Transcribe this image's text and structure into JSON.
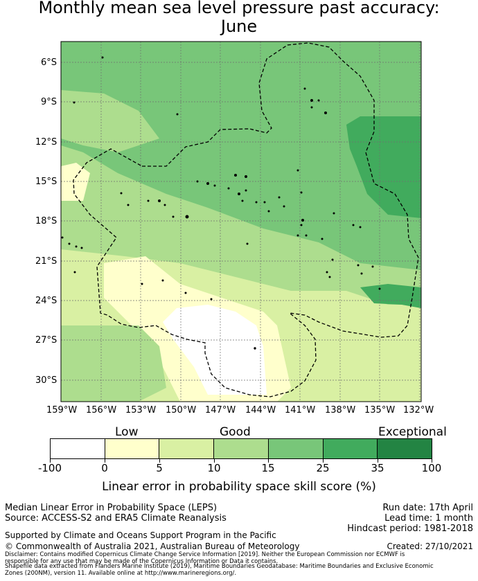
{
  "title_line1": "Monthly mean sea level pressure past accuracy:",
  "title_line2": "June",
  "map": {
    "lat_ticks": [
      "6°S",
      "9°S",
      "12°S",
      "15°S",
      "18°S",
      "21°S",
      "24°S",
      "27°S",
      "30°S"
    ],
    "lon_ticks": [
      "159°W",
      "156°W",
      "153°W",
      "150°W",
      "147°W",
      "144°W",
      "141°W",
      "138°W",
      "135°W",
      "132°W"
    ],
    "colors": {
      "low": "#ffffff",
      "c0_5": "#ffffcc",
      "c5_10": "#d9f0a3",
      "c10_15": "#addd8e",
      "c15_25": "#78c679",
      "c25_35": "#41ab5d",
      "c35_100": "#238443"
    }
  },
  "colorbar": {
    "category_labels": [
      "Low",
      "Good",
      "Exceptional"
    ],
    "tick_labels": [
      "-100",
      "0",
      "5",
      "10",
      "15",
      "25",
      "35",
      "100"
    ],
    "colors": [
      "#ffffff",
      "#ffffcc",
      "#d9f0a3",
      "#addd8e",
      "#78c679",
      "#41ab5d",
      "#238443"
    ],
    "axis_label": "Linear error in probability space skill score (%)"
  },
  "footer": {
    "method": "Median Linear Error in Probability Space (LEPS)",
    "source": "Source: ACCESS-S2 and ERA5 Climate Reanalysis",
    "run_date": "Run date: 17th April",
    "lead_time": "Lead time: 1 month",
    "hindcast": "Hindcast period: 1981-2018",
    "support": "Supported by Climate and Oceans Support Program in the Pacific",
    "copyright": "© Commonwealth of Australia 2021, Australian Bureau of Meteorology",
    "created": "Created: 27/10/2021",
    "disclaimer1": "Disclaimer: Contains modified Copernicus Climate Change Service Information [2019]. Neither the European Commission nor ECMWF is",
    "disclaimer2": "responsible for any use that may be made of the Copernicus Information or Data it contains.",
    "disclaimer3": "Shapefile data extracted from Flanders Marine Institute (2019), Maritime Boundaries Geodatabase: Maritime Boundaries and Exclusive Economic",
    "disclaimer4": "Zones (200NM), version 11. Available online at http://www.marineregions.org/."
  }
}
